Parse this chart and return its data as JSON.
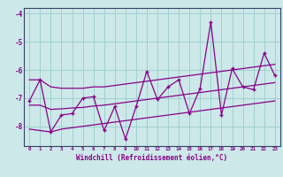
{
  "x": [
    0,
    1,
    2,
    3,
    4,
    5,
    6,
    7,
    8,
    9,
    10,
    11,
    12,
    13,
    14,
    15,
    16,
    17,
    18,
    19,
    20,
    21,
    22,
    23
  ],
  "y_main": [
    -7.1,
    -6.35,
    -8.2,
    -7.6,
    -7.55,
    -7.0,
    -6.95,
    -8.15,
    -7.3,
    -8.45,
    -7.3,
    -6.05,
    -7.05,
    -6.6,
    -6.35,
    -7.55,
    -6.65,
    -4.3,
    -7.6,
    -5.95,
    -6.6,
    -6.7,
    -5.4,
    -6.2
  ],
  "y_upper": [
    -6.35,
    -6.35,
    -6.6,
    -6.65,
    -6.65,
    -6.65,
    -6.6,
    -6.6,
    -6.55,
    -6.5,
    -6.45,
    -6.4,
    -6.35,
    -6.3,
    -6.25,
    -6.2,
    -6.15,
    -6.1,
    -6.05,
    -6.0,
    -5.95,
    -5.9,
    -5.85,
    -5.8
  ],
  "y_lower": [
    -8.1,
    -8.15,
    -8.2,
    -8.1,
    -8.05,
    -8.0,
    -7.95,
    -7.9,
    -7.85,
    -7.8,
    -7.75,
    -7.7,
    -7.65,
    -7.6,
    -7.55,
    -7.5,
    -7.45,
    -7.4,
    -7.35,
    -7.3,
    -7.25,
    -7.2,
    -7.15,
    -7.1
  ],
  "y_mid": [
    -7.25,
    -7.25,
    -7.4,
    -7.38,
    -7.35,
    -7.33,
    -7.28,
    -7.25,
    -7.2,
    -7.15,
    -7.1,
    -7.05,
    -7.0,
    -6.95,
    -6.9,
    -6.85,
    -6.8,
    -6.75,
    -6.7,
    -6.65,
    -6.6,
    -6.55,
    -6.5,
    -6.45
  ],
  "xlabel": "Windchill (Refroidissement éolien,°C)",
  "bg_color": "#cce8e8",
  "line_color": "#880088",
  "grid_color": "#99cccc",
  "ylim": [
    -8.7,
    -3.8
  ],
  "xlim": [
    -0.5,
    23.5
  ],
  "yticks": [
    -8,
    -7,
    -6,
    -5,
    -4
  ],
  "xticks": [
    0,
    1,
    2,
    3,
    4,
    5,
    6,
    7,
    8,
    9,
    10,
    11,
    12,
    13,
    14,
    15,
    16,
    17,
    18,
    19,
    20,
    21,
    22,
    23
  ]
}
